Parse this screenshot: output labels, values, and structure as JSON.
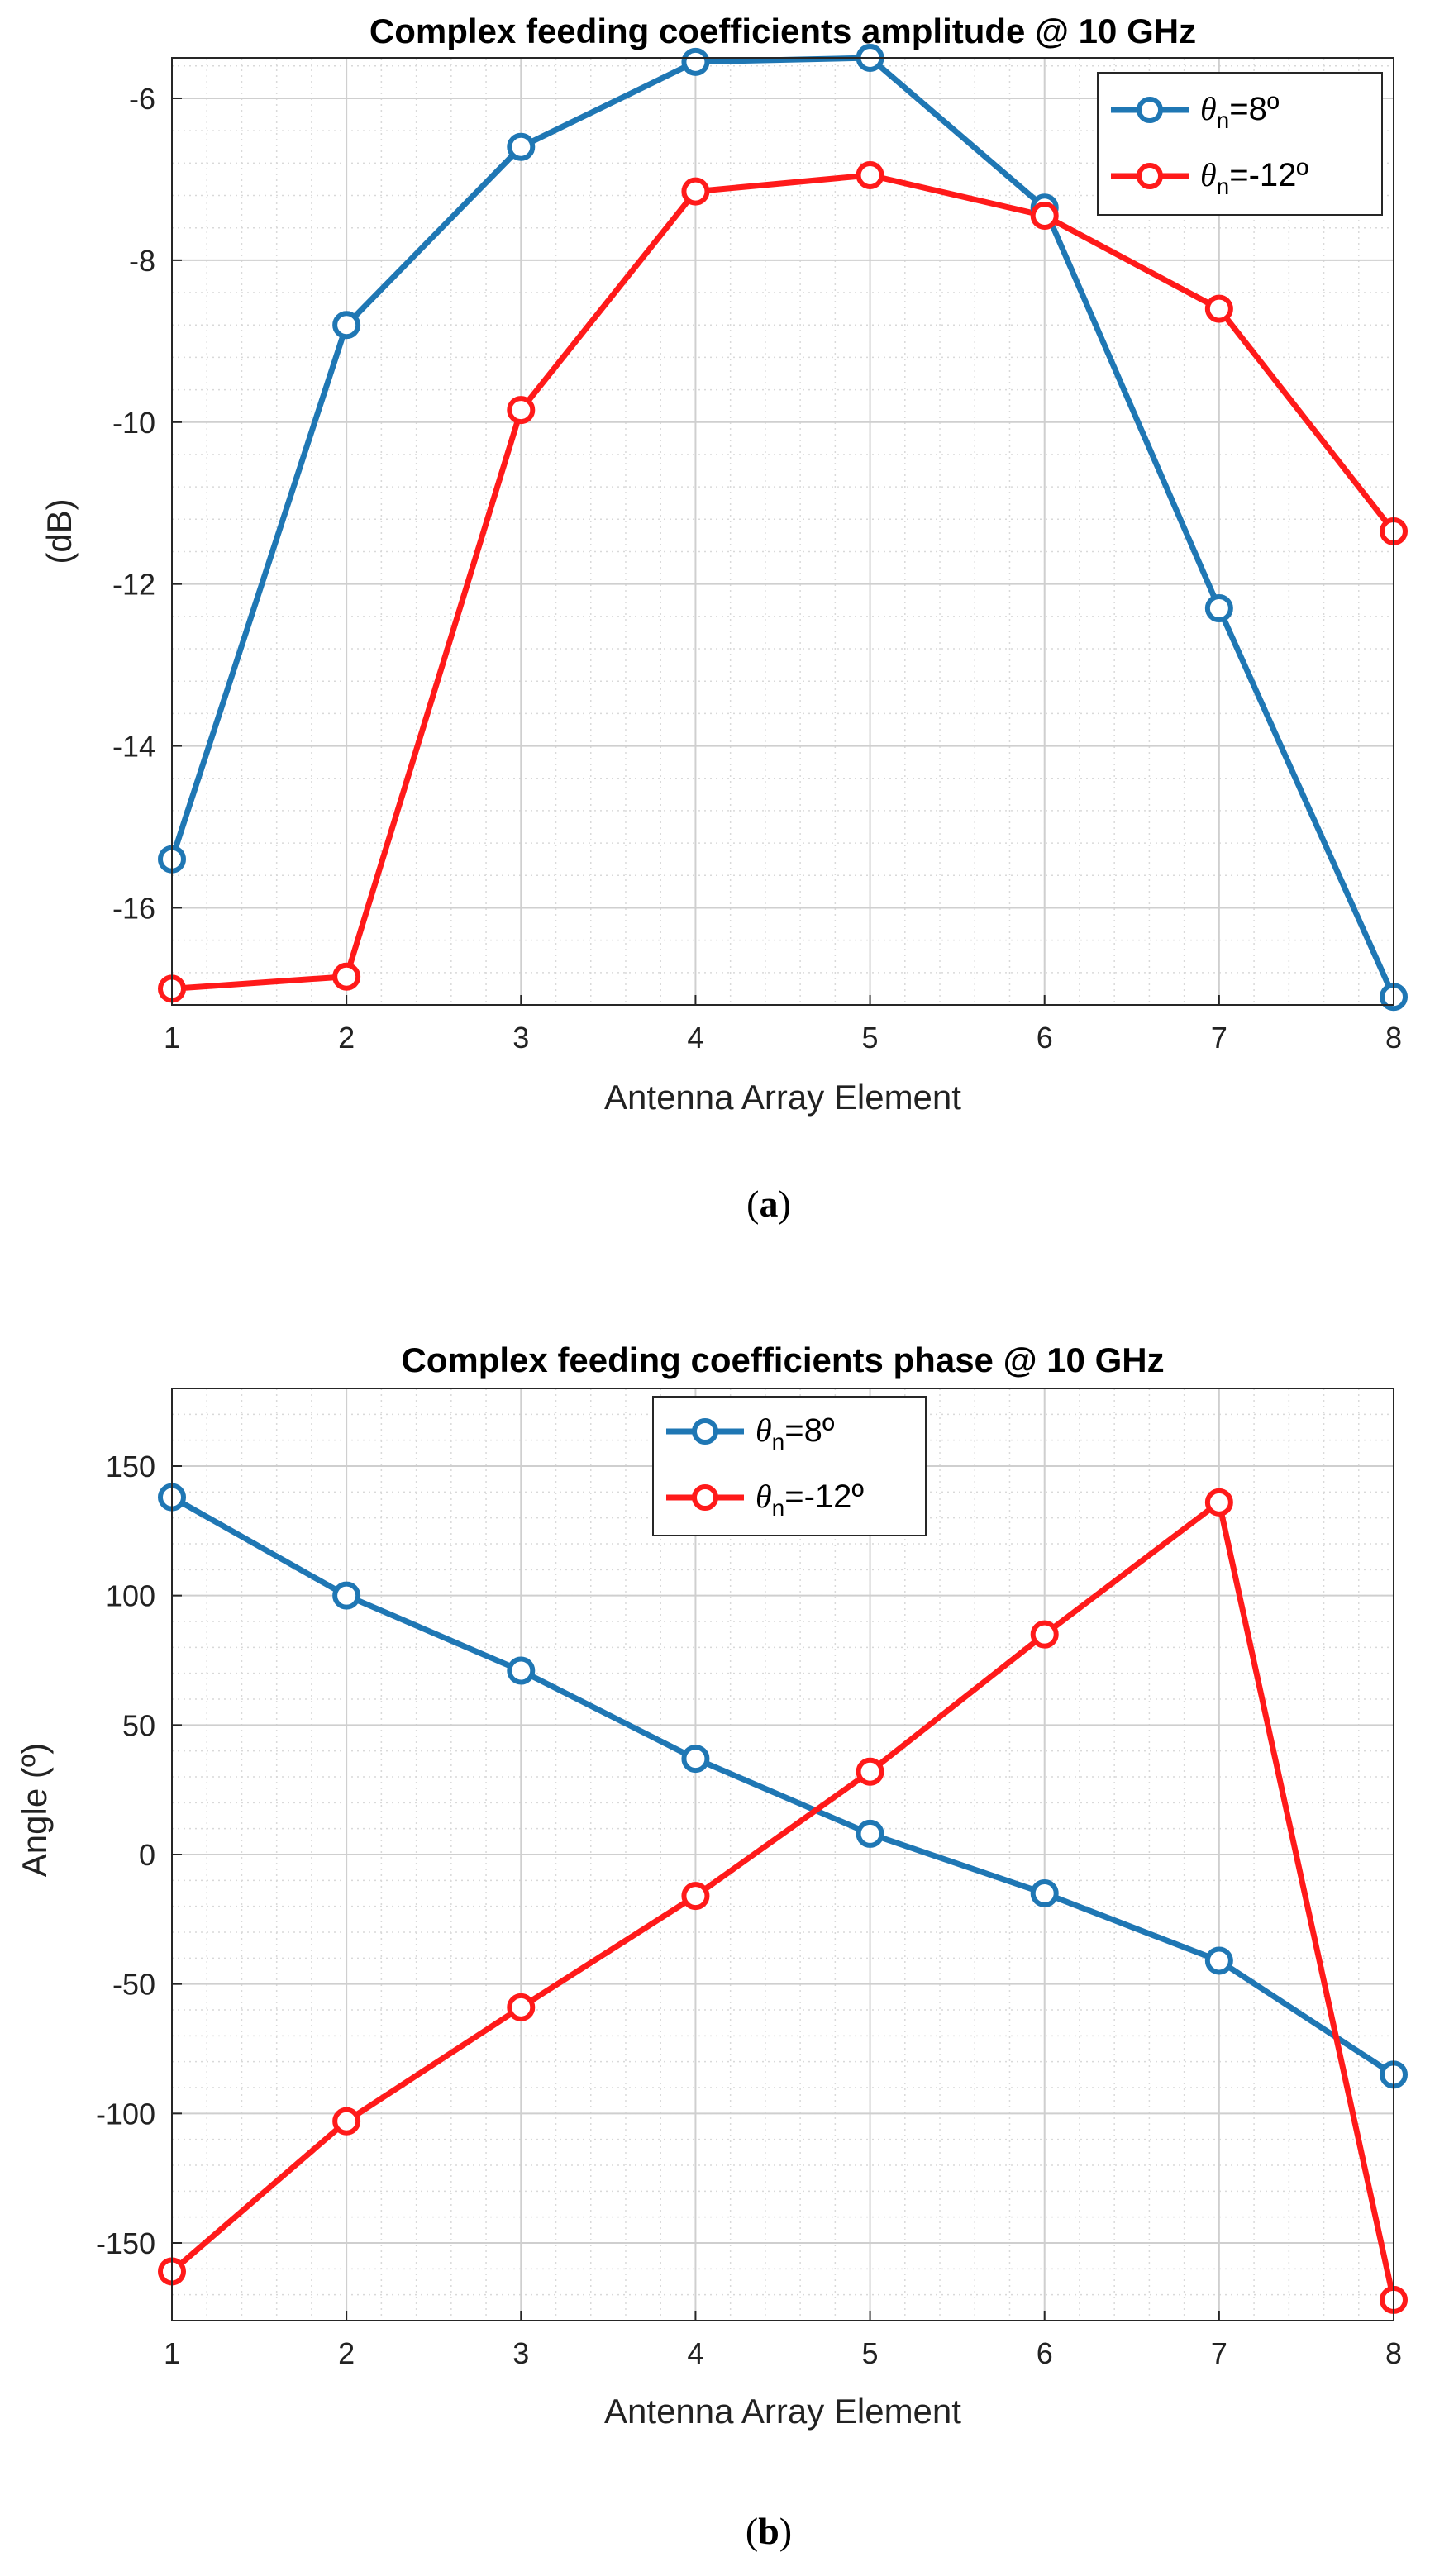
{
  "chart_data": [
    {
      "type": "line",
      "title": "Complex feeding coefficients amplitude @ 10 GHz",
      "xlabel": "Antenna Array Element",
      "ylabel": "(dB)",
      "categories": [
        1,
        2,
        3,
        4,
        5,
        6,
        7,
        8
      ],
      "x_ticks": [
        "1",
        "2",
        "3",
        "4",
        "5",
        "6",
        "7",
        "8"
      ],
      "y_ticks": [
        "-6",
        "-8",
        "-10",
        "-12",
        "-14",
        "-16"
      ],
      "y_tick_values": [
        -6,
        -8,
        -10,
        -12,
        -14,
        -16
      ],
      "xlim": [
        1,
        8
      ],
      "ylim": [
        -17.2,
        -5.5
      ],
      "grid": true,
      "legend_position": "top-right",
      "series": [
        {
          "name_symbol": "θ",
          "name_sub": "n",
          "name_rest": "=8º",
          "color": "#1f77b4",
          "values": [
            -15.4,
            -8.8,
            -6.6,
            -5.55,
            -5.5,
            -7.35,
            -12.3,
            -17.1
          ]
        },
        {
          "name_symbol": "θ",
          "name_sub": "n",
          "name_rest": "=-12º",
          "color": "#ff1a1a",
          "values": [
            -17.0,
            -16.85,
            -9.85,
            -7.15,
            -6.95,
            -7.45,
            -8.6,
            -11.35
          ]
        }
      ],
      "caption_open": "(",
      "caption_letter": "a",
      "caption_close": ")"
    },
    {
      "type": "line",
      "title": "Complex feeding coefficients phase @ 10 GHz",
      "xlabel": "Antenna Array Element",
      "ylabel": "Angle (º)",
      "categories": [
        1,
        2,
        3,
        4,
        5,
        6,
        7,
        8
      ],
      "x_ticks": [
        "1",
        "2",
        "3",
        "4",
        "5",
        "6",
        "7",
        "8"
      ],
      "y_ticks": [
        "150",
        "100",
        "50",
        "0",
        "-50",
        "-100",
        "-150"
      ],
      "y_tick_values": [
        150,
        100,
        50,
        0,
        -50,
        -100,
        -150
      ],
      "xlim": [
        1,
        8
      ],
      "ylim": [
        -180,
        180
      ],
      "grid": true,
      "legend_position": "top-center",
      "series": [
        {
          "name_symbol": "θ",
          "name_sub": "n",
          "name_rest": "=8º",
          "color": "#1f77b4",
          "values": [
            138,
            100,
            71,
            37,
            8,
            -15,
            -41,
            -85
          ]
        },
        {
          "name_symbol": "θ",
          "name_sub": "n",
          "name_rest": "=-12º",
          "color": "#ff1a1a",
          "values": [
            -161,
            -103,
            -59,
            -16,
            32,
            85,
            136,
            -172
          ]
        }
      ],
      "caption_open": "(",
      "caption_letter": "b",
      "caption_close": ")"
    }
  ]
}
